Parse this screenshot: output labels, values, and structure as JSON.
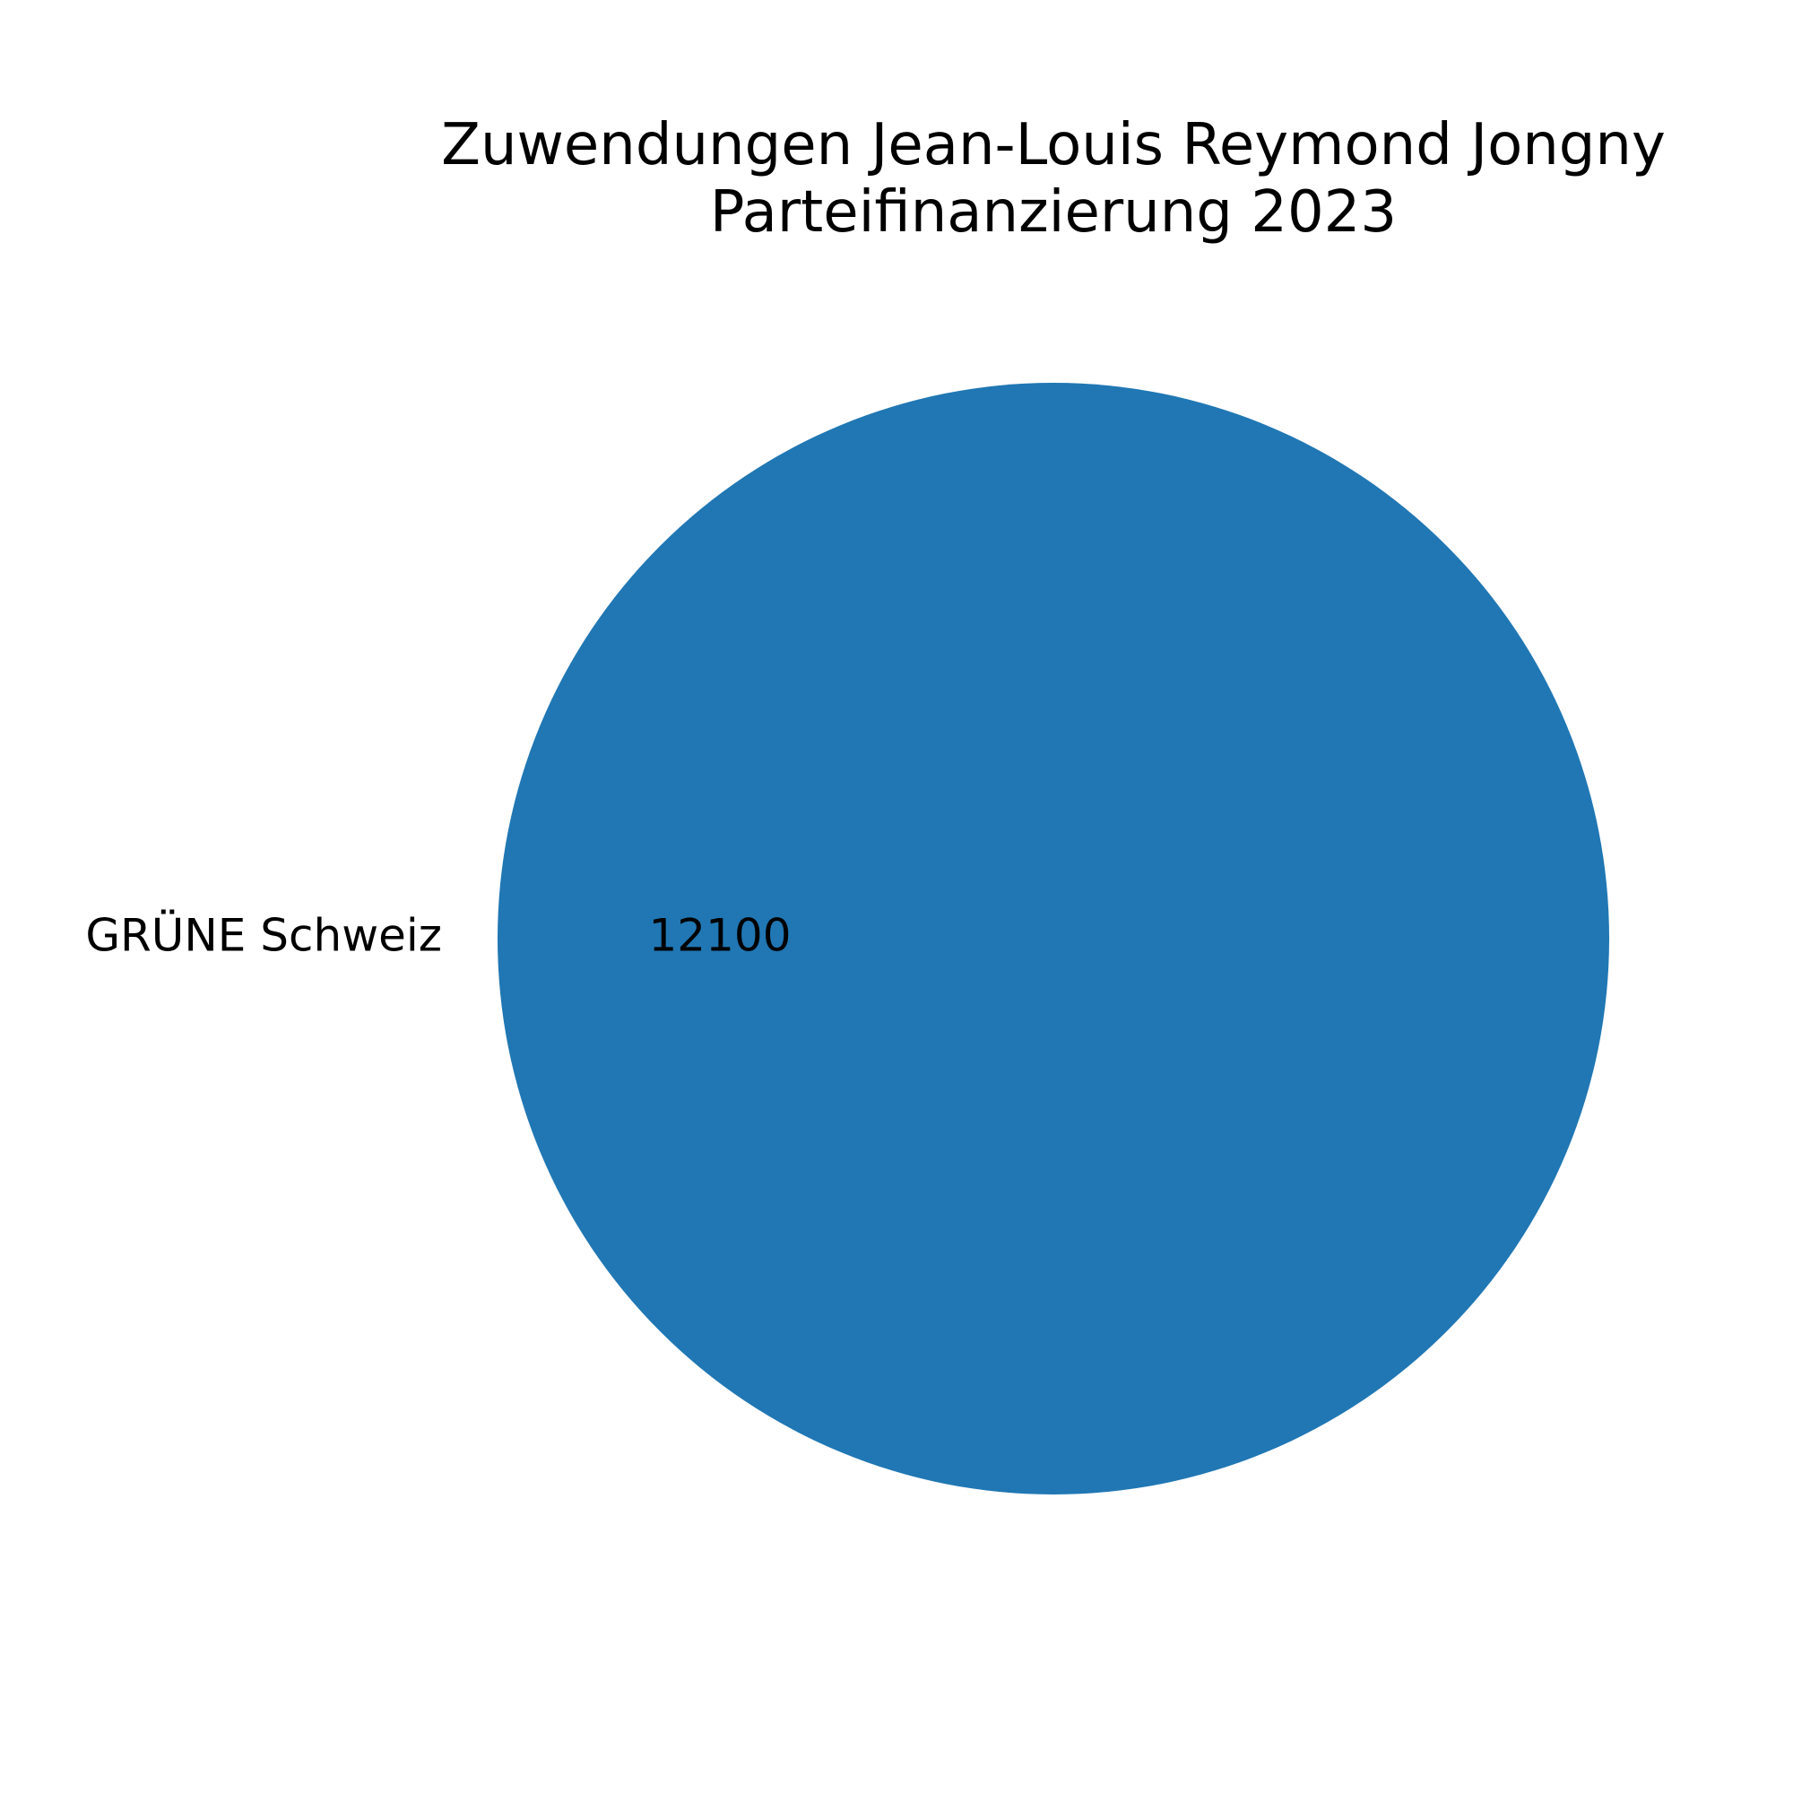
{
  "chart_data": {
    "type": "pie",
    "title_lines": [
      "Zuwendungen Jean-Louis Reymond Jongny",
      "Parteifinanzierung 2023"
    ],
    "slices": [
      {
        "label": "GRÜNE Schweiz",
        "value": 12100,
        "value_label": "12100",
        "color": "#2077b4"
      }
    ],
    "legend": "none"
  }
}
